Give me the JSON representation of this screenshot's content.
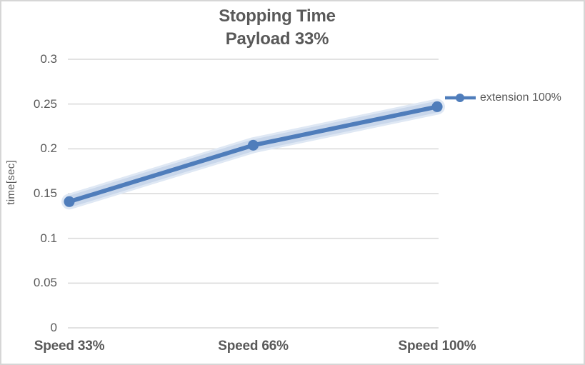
{
  "title": {
    "line1": "Stopping Time",
    "line2": "Payload 33%"
  },
  "axes": {
    "y_label": "time[sec]"
  },
  "legend": {
    "label": "extension 100%"
  },
  "colors": {
    "line": "#4f7dbb",
    "band": "#c9d7eb",
    "band_outer": "#dfe8f4",
    "grid": "#d9d9d9",
    "text": "#595959",
    "frame_border": "#d6d6d6"
  },
  "chart_data": {
    "type": "line",
    "title": "Stopping Time",
    "subtitle": "Payload 33%",
    "categories": [
      "Speed 33%",
      "Speed 66%",
      "Speed 100%"
    ],
    "series": [
      {
        "name": "extension 100%",
        "values": [
          0.141,
          0.204,
          0.247
        ]
      }
    ],
    "xlabel": "",
    "ylabel": "time[sec]",
    "ylim": [
      0,
      0.3
    ],
    "yticks": [
      0,
      0.05,
      0.1,
      0.15,
      0.2,
      0.25,
      0.3
    ],
    "grid": true,
    "legend_position": "right",
    "marker": "circle"
  }
}
